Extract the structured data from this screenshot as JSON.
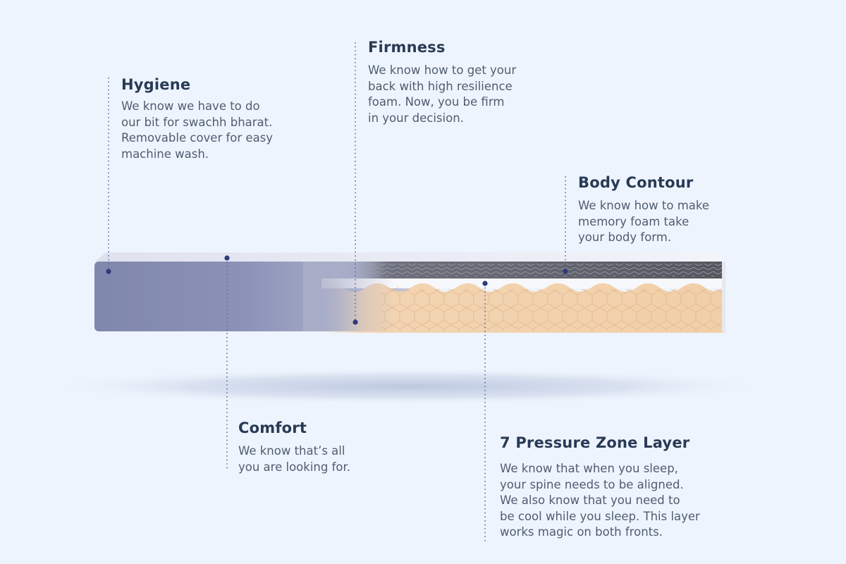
{
  "callouts": {
    "hygiene": {
      "title": "Hygiene",
      "description": "We know we have to do\nour bit for swachh bharat.\nRemovable cover for easy\nmachine wash."
    },
    "firmness": {
      "title": "Firmness",
      "description": "We know how to get your\nback with high resilience\nfoam. Now, you be firm\nin your decision."
    },
    "body_contour": {
      "title": "Body Contour",
      "description": "We know how to make\nmemory foam take\nyour body form."
    },
    "comfort": {
      "title": "Comfort",
      "description": "We know that’s all\nyou are looking for."
    },
    "pressure_zone": {
      "title": "7 Pressure Zone Layer",
      "description": "We know that when you sleep,\nyour spine needs to be aligned.\nWe also know that you need to\nbe cool while you sleep. This layer\nworks magic on both fronts."
    }
  },
  "colors": {
    "background": "#eef4fd",
    "heading": "#283a55",
    "body_text": "#4f5d70",
    "leader_line": "#5c6ca8",
    "cover": "#8b90b5",
    "memory_foam": "#5e6068",
    "pressure_foam": "#f1d2b0"
  }
}
